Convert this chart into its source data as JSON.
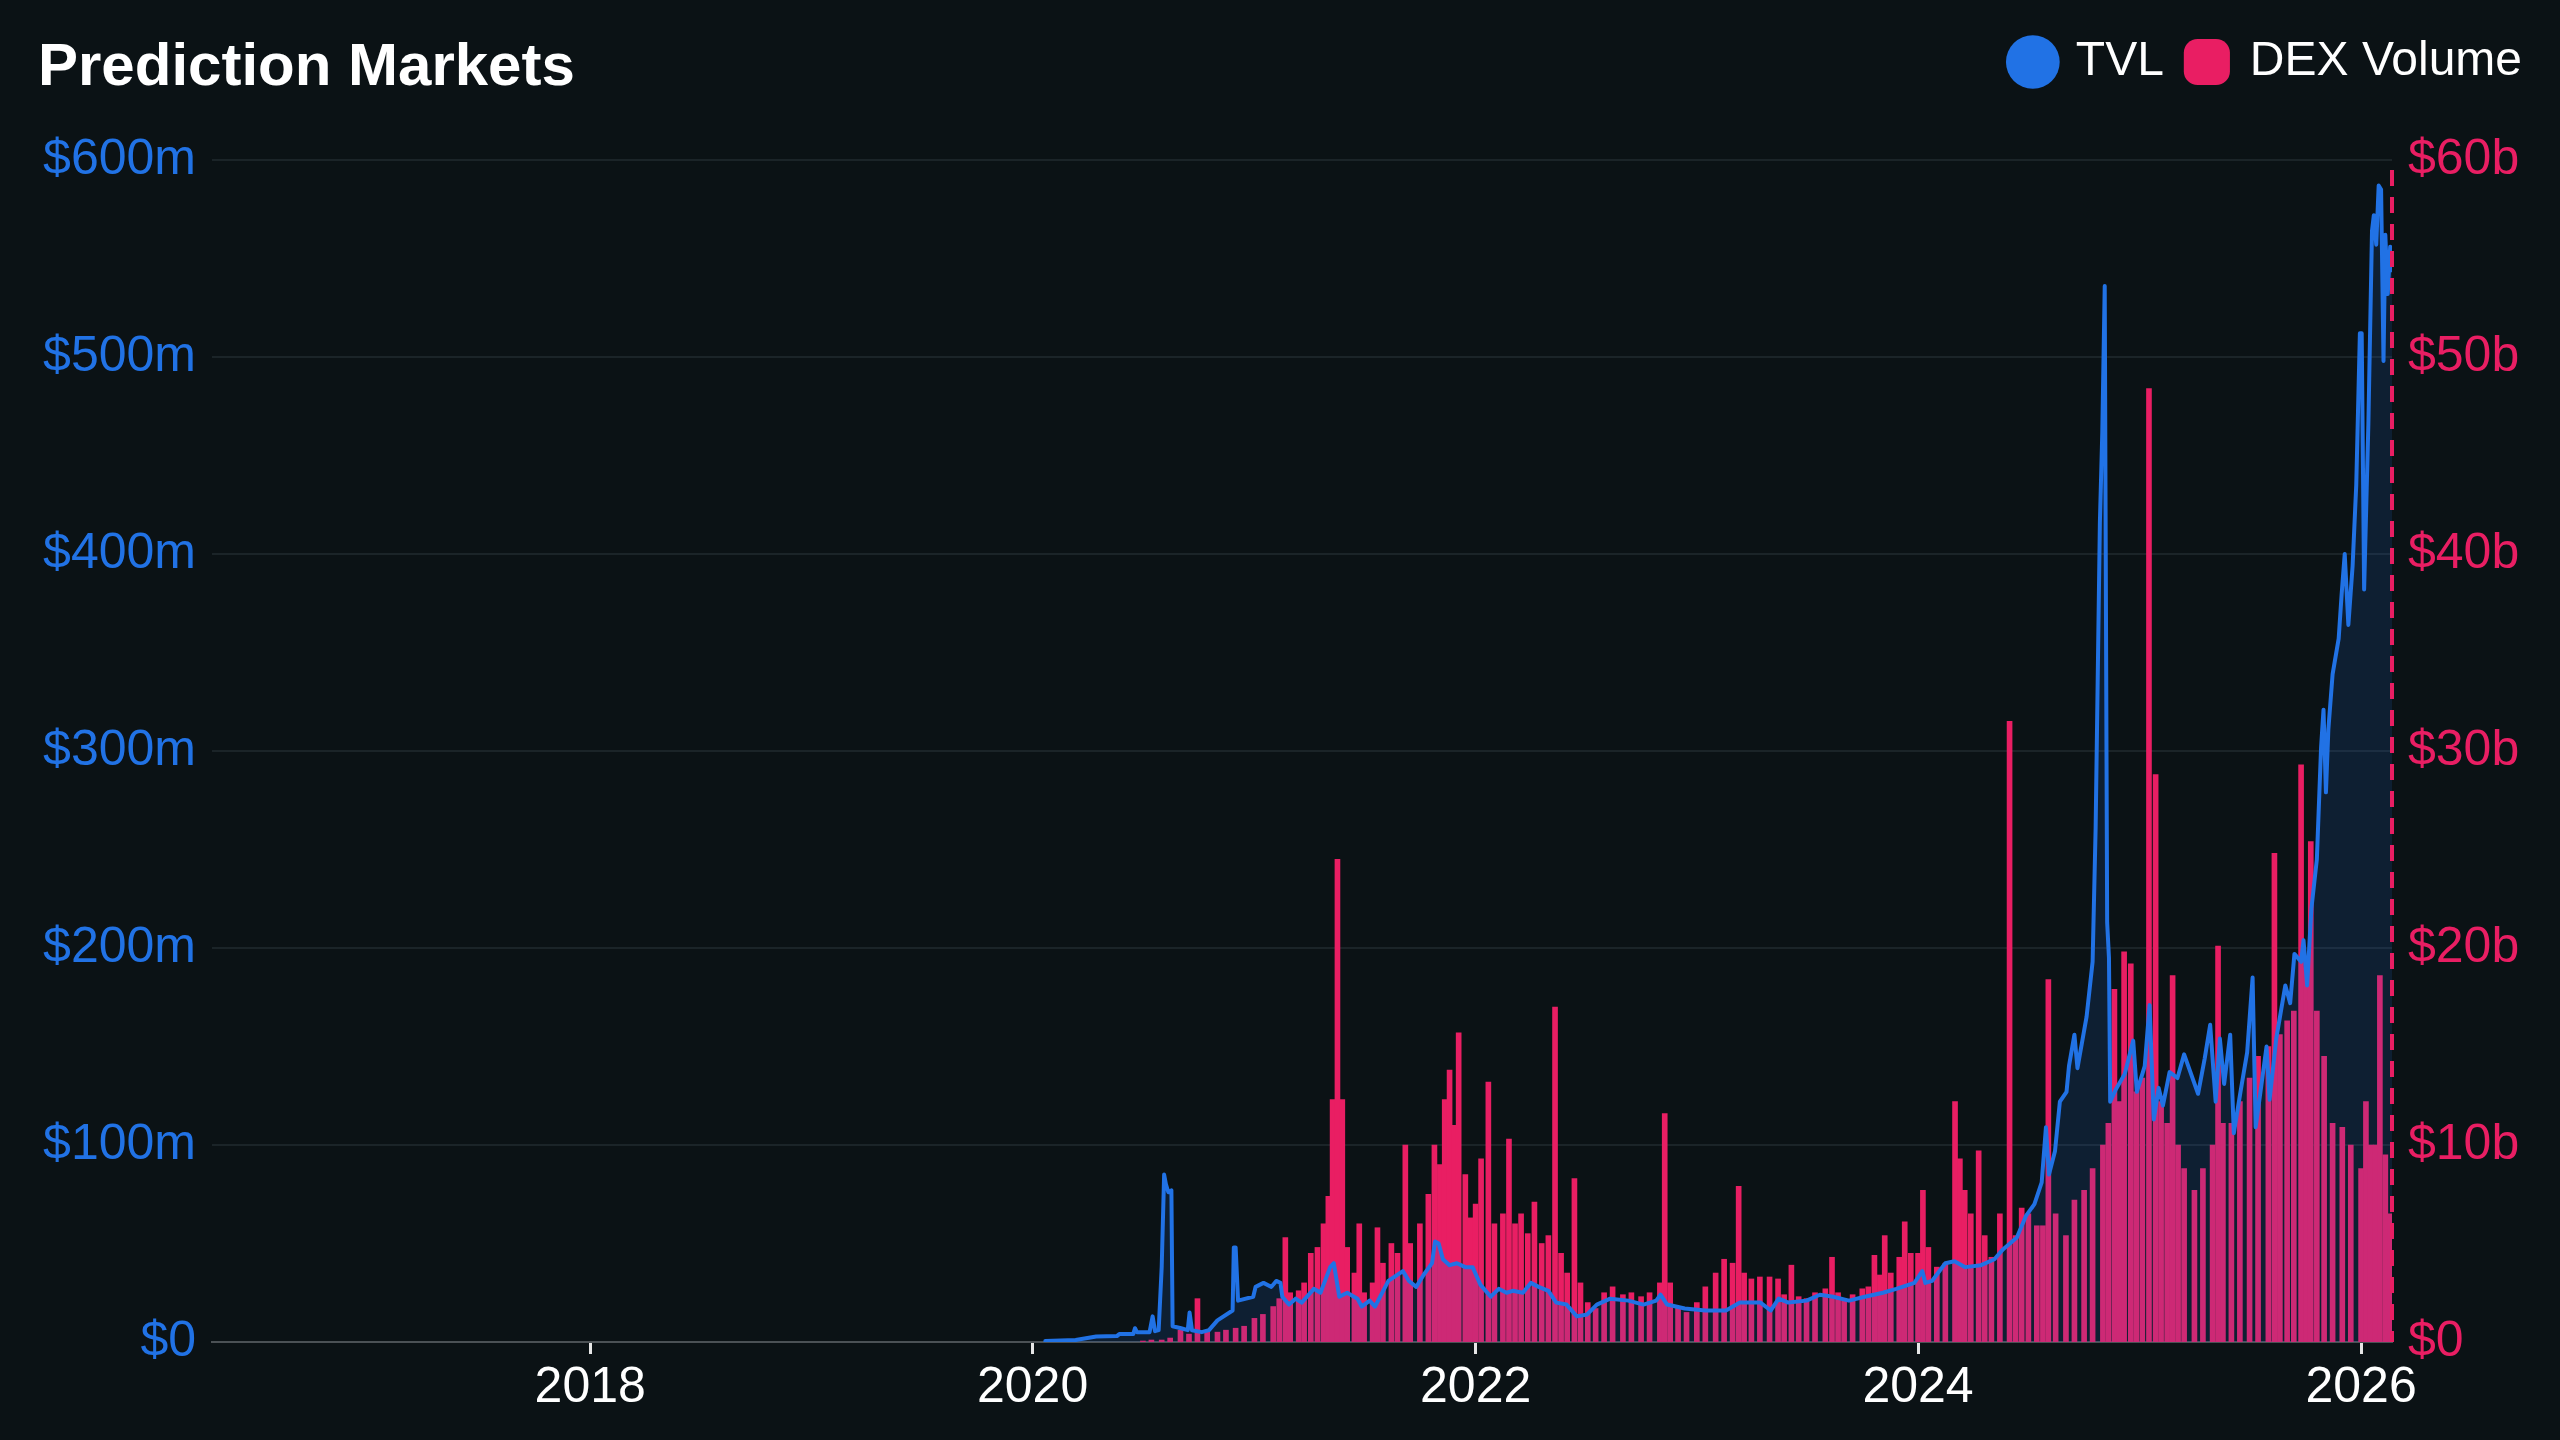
{
  "chart_data": {
    "type": "bar",
    "title": "Prediction Markets",
    "xlim": [
      "2016-04-17",
      "2026-02-21"
    ],
    "xticks": [
      "2018",
      "2020",
      "2022",
      "2024",
      "2026"
    ],
    "ylim": [
      0,
      600
    ],
    "yticks": [
      {
        "value": 0,
        "label": "$0"
      },
      {
        "value": 100,
        "label": "$100m"
      },
      {
        "value": 200,
        "label": "$200m"
      },
      {
        "value": 300,
        "label": "$300m"
      },
      {
        "value": 400,
        "label": "$400m"
      },
      {
        "value": 500,
        "label": "$500m"
      },
      {
        "value": 600,
        "label": "$600m"
      }
    ],
    "y2lim": [
      0,
      60
    ],
    "y2ticks": [
      {
        "value": 0,
        "label": "$0"
      },
      {
        "value": 10,
        "label": "$10b"
      },
      {
        "value": 20,
        "label": "$20b"
      },
      {
        "value": 30,
        "label": "$30b"
      },
      {
        "value": 40,
        "label": "$40b"
      },
      {
        "value": 50,
        "label": "$50b"
      },
      {
        "value": 60,
        "label": "$60b"
      }
    ],
    "grid": "y",
    "legend": "top right",
    "series": [
      {
        "name": "TVL",
        "type": "area",
        "color": "#2172e5",
        "x": [
          "2020-01-22",
          "2020-03-12",
          "2020-04-15",
          "2020-05-19",
          "2020-05-23",
          "2020-06-15",
          "2020-06-18",
          "2020-06-21",
          "2020-07-12",
          "2020-07-17",
          "2020-07-21",
          "2020-07-27",
          "2020-08-01",
          "2020-08-05",
          "2020-08-08",
          "2020-08-12",
          "2020-08-17",
          "2020-08-19",
          "2020-09-02",
          "2020-09-13",
          "2020-09-16",
          "2020-09-20",
          "2020-10-06",
          "2020-10-18",
          "2020-11-01",
          "2020-11-26",
          "2020-11-28",
          "2020-12-01",
          "2020-12-05",
          "2020-12-30",
          "2021-01-03",
          "2021-01-16",
          "2021-01-29",
          "2021-02-06",
          "2021-02-13",
          "2021-02-16",
          "2021-02-27",
          "2021-03-10",
          "2021-03-20",
          "2021-04-09",
          "2021-04-20",
          "2021-05-06",
          "2021-05-12",
          "2021-05-21",
          "2021-06-03",
          "2021-06-20",
          "2021-06-27",
          "2021-07-10",
          "2021-07-19",
          "2021-08-10",
          "2021-09-03",
          "2021-09-13",
          "2021-09-25",
          "2021-10-07",
          "2021-10-21",
          "2021-10-26",
          "2021-11-01",
          "2021-11-08",
          "2021-11-19",
          "2021-12-01",
          "2021-12-15",
          "2021-12-27",
          "2022-01-09",
          "2022-01-26",
          "2022-02-08",
          "2022-02-21",
          "2022-03-03",
          "2022-03-20",
          "2022-04-02",
          "2022-04-15",
          "2022-05-01",
          "2022-05-14",
          "2022-05-31",
          "2022-06-17",
          "2022-07-04",
          "2022-07-20",
          "2022-08-11",
          "2022-09-10",
          "2022-10-05",
          "2022-10-26",
          "2022-11-02",
          "2022-11-13",
          "2022-12-12",
          "2023-01-15",
          "2023-02-18",
          "2023-03-13",
          "2023-04-16",
          "2023-05-03",
          "2023-05-16",
          "2023-06-01",
          "2023-07-01",
          "2023-07-23",
          "2023-08-14",
          "2023-09-09",
          "2023-10-05",
          "2023-11-04",
          "2023-11-26",
          "2023-12-26",
          "2024-01-08",
          "2024-01-13",
          "2024-01-24",
          "2024-02-15",
          "2024-03-01",
          "2024-03-19",
          "2024-04-14",
          "2024-05-06",
          "2024-05-20",
          "2024-06-12",
          "2024-06-27",
          "2024-07-11",
          "2024-07-23",
          "2024-07-30",
          "2024-08-04",
          "2024-08-14",
          "2024-08-22",
          "2024-09-02",
          "2024-09-06",
          "2024-09-15",
          "2024-09-20",
          "2024-10-05",
          "2024-10-15",
          "2024-10-20",
          "2024-10-27",
          "2024-10-31",
          "2024-11-04",
          "2024-11-08",
          "2024-11-11",
          "2024-11-13",
          "2024-11-22",
          "2024-12-07",
          "2024-12-21",
          "2024-12-27",
          "2025-01-09",
          "2025-01-17",
          "2025-01-24",
          "2025-02-01",
          "2025-02-08",
          "2025-02-19",
          "2025-03-04",
          "2025-03-15",
          "2025-04-07",
          "2025-04-18",
          "2025-04-27",
          "2025-05-06",
          "2025-05-13",
          "2025-05-20",
          "2025-05-30",
          "2025-06-05",
          "2025-06-16",
          "2025-06-27",
          "2025-07-06",
          "2025-07-11",
          "2025-07-19",
          "2025-07-29",
          "2025-08-03",
          "2025-08-14",
          "2025-08-29",
          "2025-09-06",
          "2025-09-13",
          "2025-09-24",
          "2025-09-28",
          "2025-10-04",
          "2025-10-11",
          "2025-10-20",
          "2025-10-27",
          "2025-10-31",
          "2025-11-04",
          "2025-11-08",
          "2025-11-15",
          "2025-11-25",
          "2025-11-30",
          "2025-12-05",
          "2025-12-11",
          "2025-12-18",
          "2025-12-24",
          "2025-12-30",
          "2026-01-02",
          "2026-01-06",
          "2026-01-13",
          "2026-01-19",
          "2026-01-22",
          "2026-01-26",
          "2026-01-30",
          "2026-02-03",
          "2026-02-07",
          "2026-02-10",
          "2026-02-14",
          "2026-02-18",
          "2026-02-21"
        ],
        "values": [
          0.5,
          1,
          2.8,
          3,
          4,
          4,
          7,
          5,
          5,
          13,
          5.5,
          6,
          38,
          85,
          80,
          76,
          77,
          8,
          7,
          6,
          15,
          6,
          5,
          6,
          11,
          16,
          48,
          48,
          21,
          23,
          28,
          30,
          28,
          31,
          30,
          23,
          19,
          22,
          20,
          27,
          25,
          38,
          40,
          23,
          25,
          22,
          18,
          21,
          18,
          31,
          36,
          31,
          28,
          34,
          40,
          51,
          50,
          42,
          39,
          40,
          38,
          38,
          29,
          23,
          27,
          25,
          26,
          25,
          30,
          28,
          26,
          20,
          19,
          13,
          14,
          19,
          22,
          21,
          19,
          21,
          24,
          19,
          17,
          16,
          16,
          20,
          20,
          16,
          22,
          20,
          21,
          24,
          23,
          21,
          23,
          25,
          27,
          30,
          36,
          30,
          31,
          40,
          41,
          38,
          39,
          42,
          47,
          53,
          64,
          70,
          81,
          109,
          85,
          97,
          122,
          127,
          140,
          156,
          139,
          165,
          193,
          261,
          416,
          462,
          536,
          213,
          195,
          122,
          128,
          136,
          153,
          127,
          140,
          171,
          113,
          129,
          120,
          137,
          134,
          146,
          126,
          144,
          161,
          122,
          154,
          131,
          156,
          106,
          127,
          147,
          185,
          109,
          127,
          150,
          123,
          154,
          181,
          172,
          197,
          193,
          204,
          181,
          220,
          245,
          302,
          321,
          279,
          311,
          339,
          357,
          380,
          400,
          364,
          394,
          435,
          512,
          512,
          382,
          466,
          564,
          572,
          557,
          587,
          585,
          498,
          562,
          532,
          556,
          544
        ]
      },
      {
        "name": "DEX Volume",
        "axis": "y2",
        "color": "#e91e63",
        "x": [
          "2020-07-01",
          "2020-07-15",
          "2020-08-01",
          "2020-08-15",
          "2020-09-01",
          "2020-09-15",
          "2020-09-29",
          "2020-10-15",
          "2020-11-01",
          "2020-11-15",
          "2020-12-01",
          "2020-12-15",
          "2021-01-01",
          "2021-01-15",
          "2021-02-01",
          "2021-02-11",
          "2021-02-21",
          "2021-03-01",
          "2021-03-15",
          "2021-03-24",
          "2021-04-04",
          "2021-04-15",
          "2021-04-25",
          "2021-05-03",
          "2021-05-10",
          "2021-05-18",
          "2021-05-26",
          "2021-06-03",
          "2021-06-15",
          "2021-06-23",
          "2021-07-01",
          "2021-07-15",
          "2021-07-23",
          "2021-08-01",
          "2021-08-15",
          "2021-08-25",
          "2021-09-07",
          "2021-09-15",
          "2021-10-01",
          "2021-10-15",
          "2021-10-25",
          "2021-11-03",
          "2021-11-11",
          "2021-11-19",
          "2021-11-27",
          "2021-12-04",
          "2021-12-15",
          "2021-12-24",
          "2022-01-01",
          "2022-01-10",
          "2022-01-22",
          "2022-02-01",
          "2022-02-15",
          "2022-02-25",
          "2022-03-07",
          "2022-03-17",
          "2022-03-28",
          "2022-04-08",
          "2022-04-20",
          "2022-05-01",
          "2022-05-12",
          "2022-05-22",
          "2022-06-01",
          "2022-06-13",
          "2022-06-23",
          "2022-07-05",
          "2022-07-18",
          "2022-08-01",
          "2022-08-15",
          "2022-09-01",
          "2022-09-15",
          "2022-10-01",
          "2022-10-15",
          "2022-11-01",
          "2022-11-09",
          "2022-11-18",
          "2022-12-01",
          "2022-12-15",
          "2023-01-01",
          "2023-01-15",
          "2023-02-01",
          "2023-02-15",
          "2023-03-01",
          "2023-03-11",
          "2023-03-20",
          "2023-04-01",
          "2023-04-15",
          "2023-05-01",
          "2023-05-15",
          "2023-05-25",
          "2023-06-06",
          "2023-06-18",
          "2023-07-01",
          "2023-07-15",
          "2023-08-01",
          "2023-08-12",
          "2023-08-22",
          "2023-09-01",
          "2023-09-15",
          "2023-10-01",
          "2023-10-11",
          "2023-10-21",
          "2023-10-30",
          "2023-11-07",
          "2023-11-17",
          "2023-12-01",
          "2023-12-10",
          "2023-12-20",
          "2024-01-01",
          "2024-01-09",
          "2024-01-18",
          "2024-02-01",
          "2024-02-15",
          "2024-03-02",
          "2024-03-10",
          "2024-03-18",
          "2024-03-28",
          "2024-04-10",
          "2024-04-20",
          "2024-05-01",
          "2024-05-15",
          "2024-05-31",
          "2024-06-10",
          "2024-06-20",
          "2024-07-01",
          "2024-07-15",
          "2024-07-25",
          "2024-08-03",
          "2024-08-15",
          "2024-09-01",
          "2024-09-15",
          "2024-10-01",
          "2024-10-15",
          "2024-11-01",
          "2024-11-10",
          "2024-11-20",
          "2024-11-28",
          "2024-12-06",
          "2024-12-17",
          "2024-12-26",
          "2025-01-05",
          "2025-01-16",
          "2025-01-27",
          "2025-02-05",
          "2025-02-15",
          "2025-02-24",
          "2025-03-05",
          "2025-03-15",
          "2025-04-01",
          "2025-04-15",
          "2025-05-01",
          "2025-05-10",
          "2025-05-18",
          "2025-06-01",
          "2025-06-15",
          "2025-07-01",
          "2025-07-15",
          "2025-08-01",
          "2025-08-11",
          "2025-08-20",
          "2025-09-01",
          "2025-09-12",
          "2025-09-24",
          "2025-10-02",
          "2025-10-10",
          "2025-10-20",
          "2025-11-01",
          "2025-11-15",
          "2025-12-01",
          "2025-12-15",
          "2026-01-01",
          "2026-01-09",
          "2026-01-17",
          "2026-01-25",
          "2026-02-01",
          "2026-02-10",
          "2026-02-18"
        ],
        "values": [
          0.05,
          0.1,
          0.1,
          0.2,
          0.6,
          0.4,
          2.2,
          0.5,
          0.5,
          0.6,
          0.7,
          0.8,
          1.2,
          1.4,
          1.8,
          2.2,
          5.3,
          2.5,
          2.6,
          3.0,
          4.5,
          4.8,
          6.0,
          7.4,
          12.3,
          24.5,
          12.3,
          4.8,
          3.5,
          6.0,
          2.5,
          3.0,
          5.8,
          4.0,
          5.0,
          4.5,
          10.0,
          5.0,
          6.0,
          7.5,
          10.0,
          9.0,
          12.3,
          13.8,
          11.0,
          15.7,
          8.5,
          6.3,
          7.0,
          9.3,
          13.2,
          6.0,
          6.5,
          10.3,
          6.0,
          6.5,
          5.5,
          7.1,
          5.0,
          5.4,
          17.0,
          4.5,
          3.5,
          8.3,
          3.0,
          2.0,
          1.7,
          2.5,
          2.8,
          2.4,
          2.5,
          2.3,
          2.5,
          3.0,
          11.6,
          3.0,
          1.8,
          1.5,
          2.0,
          2.8,
          3.5,
          4.2,
          4.0,
          7.9,
          3.5,
          3.2,
          3.3,
          3.3,
          3.2,
          2.4,
          3.9,
          2.3,
          2.2,
          2.5,
          2.7,
          4.3,
          2.5,
          2.2,
          2.4,
          2.7,
          2.8,
          4.4,
          3.4,
          5.4,
          3.5,
          4.3,
          6.1,
          4.5,
          4.5,
          7.7,
          4.8,
          3.8,
          4.0,
          12.2,
          9.3,
          7.7,
          6.5,
          9.7,
          5.4,
          4.3,
          6.5,
          31.5,
          5.4,
          6.8,
          6.5,
          5.9,
          5.9,
          18.4,
          6.5,
          5.4,
          7.2,
          7.7,
          8.8,
          10.0,
          11.1,
          17.9,
          12.2,
          19.8,
          19.2,
          12.7,
          13.4,
          48.4,
          28.8,
          12.2,
          11.1,
          18.6,
          10.0,
          8.8,
          7.7,
          8.8,
          10.0,
          20.1,
          11.1,
          11.1,
          12.2,
          13.4,
          14.5,
          15.0,
          24.8,
          15.6,
          16.3,
          16.8,
          29.3,
          19.0,
          25.4,
          16.8,
          14.5,
          11.1,
          10.9,
          10.0,
          8.8,
          12.2,
          10.0,
          10.0,
          18.6,
          9.5,
          6.5
        ]
      }
    ],
    "ref_lines": [
      {
        "axis": "x",
        "value": "2026-02-21",
        "color": "#e91e63",
        "line_style": "dashed"
      }
    ]
  }
}
